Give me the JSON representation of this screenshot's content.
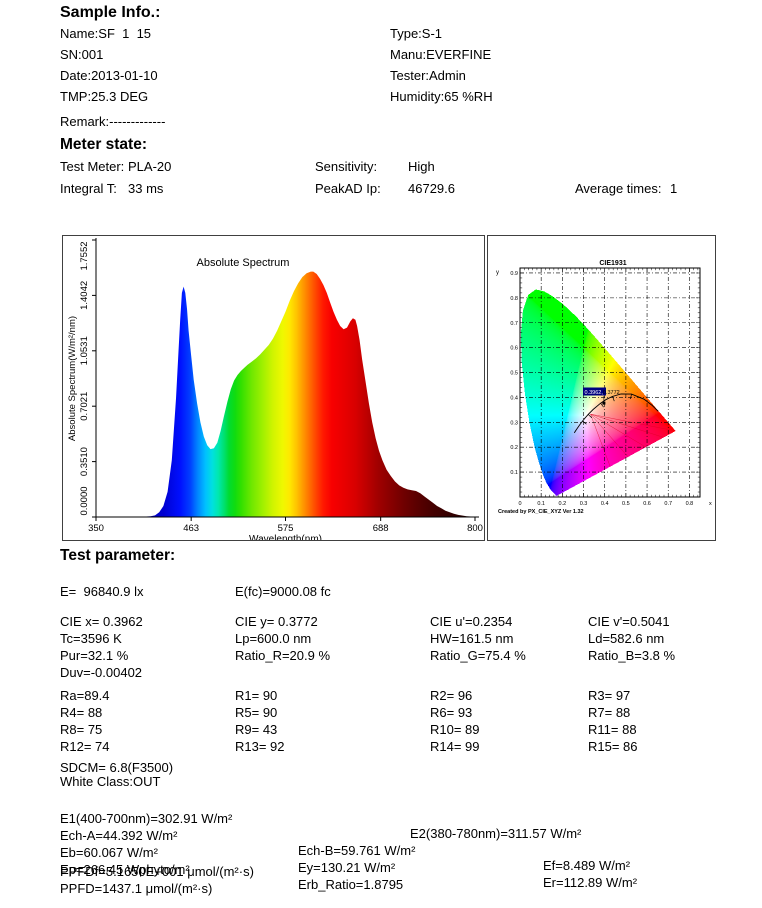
{
  "sample_info": {
    "heading": "Sample Info.:",
    "left": [
      "Name:SF  1  15",
      "SN:001",
      "Date:2013-01-10",
      "TMP:25.3 DEG",
      "Remark:-------------"
    ],
    "right": [
      "Type:S-1",
      "Manu:EVERFINE",
      "Tester:Admin",
      "Humidity:65 %RH"
    ]
  },
  "meter_state": {
    "heading": "Meter state:",
    "left": [
      [
        "Test Meter:",
        "PLA-20"
      ],
      [
        "Integral T:",
        "33 ms"
      ]
    ],
    "mid": [
      [
        "Sensitivity:",
        "High"
      ],
      [
        "PeakAD Ip:",
        "46729.6"
      ]
    ],
    "right": [
      [
        "Average times:",
        "1"
      ]
    ]
  },
  "test_parameter": {
    "heading": "Test parameter:",
    "e_row": [
      [
        "E=  96840.9 lx",
        "E(fc)=9000.08 fc"
      ]
    ],
    "cie_rows": [
      [
        "CIE x= 0.3962",
        "CIE y= 0.3772",
        "CIE u'=0.2354",
        "CIE v'=0.5041"
      ],
      [
        "Tc=3596 K",
        "Lp=600.0 nm",
        "HW=161.5 nm",
        "Ld=582.6 nm"
      ],
      [
        "Pur=32.1 %",
        "Ratio_R=20.9 %",
        "Ratio_G=75.4 %",
        "Ratio_B=3.8 %"
      ],
      [
        "Duv=-0.00402",
        "",
        "",
        ""
      ]
    ],
    "cri_rows": [
      [
        "Ra=89.4",
        "R1= 90",
        "R2= 96",
        "R3= 97"
      ],
      [
        "R4= 88",
        "R5= 90",
        "R6= 93",
        "R7= 88"
      ],
      [
        "R8= 75",
        "R9= 43",
        "R10= 89",
        "R11= 88"
      ],
      [
        "R12= 74",
        "R13= 92",
        "R14= 99",
        "R15= 86"
      ]
    ],
    "sdcm": "SDCM= 6.8(F3500)",
    "white_class": "White Class:OUT",
    "energy": {
      "e1": "E1(400-700nm)=302.91 W/m²",
      "e2": "E2(380-780nm)=311.57 W/m²",
      "ech_a": "Ech-A=44.392 W/m²",
      "ech_b": "Ech-B=59.761 W/m²",
      "ef": "Ef=8.489 W/m²",
      "eb": "Eb=60.067 W/m²",
      "ey": "Ey=130.21 W/m²",
      "er": "Er=112.89 W/m²",
      "ep": "Ep=266.45 Wphyto/m²",
      "erb": "Erb_Ratio=1.8795",
      "ppfdf": "PPFDf=5.1650E+001 μmol/(m²·s)",
      "ppfd": "PPFD=1437.1 μmol/(m²·s)"
    }
  },
  "chart_data": [
    {
      "type": "area",
      "title": "Absolute Spectrum",
      "xlabel": "Wavelength(nm)",
      "ylabel": "Absolute Spectrum(W/m²/nm)",
      "xlim": [
        350,
        800
      ],
      "ylim": [
        0,
        1.7552
      ],
      "xtick_labels": [
        "350",
        "463",
        "575",
        "688",
        "800"
      ],
      "ytick_labels": [
        "0.0000",
        "0.3510",
        "0.7021",
        "1.0531",
        "1.4042",
        "1.7552"
      ],
      "points": [
        [
          350,
          0
        ],
        [
          400,
          0
        ],
        [
          415,
          0.005
        ],
        [
          420,
          0.01
        ],
        [
          425,
          0.03
        ],
        [
          430,
          0.07
        ],
        [
          435,
          0.16
        ],
        [
          440,
          0.36
        ],
        [
          445,
          0.75
        ],
        [
          448,
          1.05
        ],
        [
          450,
          1.25
        ],
        [
          452,
          1.42
        ],
        [
          454,
          1.46
        ],
        [
          456,
          1.42
        ],
        [
          458,
          1.32
        ],
        [
          460,
          1.18
        ],
        [
          463,
          1.02
        ],
        [
          466,
          0.87
        ],
        [
          470,
          0.72
        ],
        [
          474,
          0.6
        ],
        [
          478,
          0.51
        ],
        [
          482,
          0.455
        ],
        [
          486,
          0.43
        ],
        [
          490,
          0.435
        ],
        [
          494,
          0.47
        ],
        [
          498,
          0.545
        ],
        [
          502,
          0.64
        ],
        [
          506,
          0.73
        ],
        [
          510,
          0.81
        ],
        [
          514,
          0.865
        ],
        [
          518,
          0.9
        ],
        [
          522,
          0.925
        ],
        [
          526,
          0.945
        ],
        [
          530,
          0.965
        ],
        [
          535,
          0.985
        ],
        [
          540,
          1.005
        ],
        [
          545,
          1.03
        ],
        [
          550,
          1.06
        ],
        [
          555,
          1.09
        ],
        [
          560,
          1.13
        ],
        [
          565,
          1.18
        ],
        [
          570,
          1.24
        ],
        [
          575,
          1.3
        ],
        [
          580,
          1.37
        ],
        [
          585,
          1.43
        ],
        [
          590,
          1.48
        ],
        [
          595,
          1.52
        ],
        [
          600,
          1.545
        ],
        [
          605,
          1.555
        ],
        [
          608,
          1.555
        ],
        [
          612,
          1.54
        ],
        [
          616,
          1.51
        ],
        [
          620,
          1.47
        ],
        [
          624,
          1.42
        ],
        [
          628,
          1.36
        ],
        [
          632,
          1.3
        ],
        [
          636,
          1.25
        ],
        [
          640,
          1.21
        ],
        [
          644,
          1.19
        ],
        [
          648,
          1.2
        ],
        [
          652,
          1.24
        ],
        [
          655,
          1.26
        ],
        [
          658,
          1.25
        ],
        [
          660,
          1.21
        ],
        [
          663,
          1.12
        ],
        [
          666,
          1.0
        ],
        [
          670,
          0.86
        ],
        [
          674,
          0.72
        ],
        [
          678,
          0.6
        ],
        [
          682,
          0.5
        ],
        [
          686,
          0.42
        ],
        [
          690,
          0.36
        ],
        [
          695,
          0.3
        ],
        [
          700,
          0.26
        ],
        [
          705,
          0.225
        ],
        [
          710,
          0.2
        ],
        [
          715,
          0.185
        ],
        [
          720,
          0.175
        ],
        [
          725,
          0.17
        ],
        [
          730,
          0.165
        ],
        [
          735,
          0.15
        ],
        [
          740,
          0.13
        ],
        [
          745,
          0.11
        ],
        [
          750,
          0.09
        ],
        [
          755,
          0.07
        ],
        [
          760,
          0.055
        ],
        [
          765,
          0.04
        ],
        [
          770,
          0.03
        ],
        [
          775,
          0.02
        ],
        [
          780,
          0.013
        ],
        [
          790,
          0.005
        ],
        [
          800,
          0.002
        ]
      ],
      "gradient": [
        [
          350,
          "#0000a0"
        ],
        [
          430,
          "#0000d0"
        ],
        [
          450,
          "#0010ff"
        ],
        [
          462,
          "#0040ff"
        ],
        [
          470,
          "#0080ff"
        ],
        [
          480,
          "#00c0ff"
        ],
        [
          488,
          "#00e0e0"
        ],
        [
          495,
          "#00e8b0"
        ],
        [
          502,
          "#00e070"
        ],
        [
          508,
          "#00dc30"
        ],
        [
          515,
          "#10dc10"
        ],
        [
          522,
          "#30e000"
        ],
        [
          535,
          "#70e800"
        ],
        [
          548,
          "#a0f000"
        ],
        [
          560,
          "#d0f400"
        ],
        [
          572,
          "#f0f800"
        ],
        [
          580,
          "#ffe800"
        ],
        [
          588,
          "#ffc400"
        ],
        [
          596,
          "#ff9800"
        ],
        [
          604,
          "#ff6c00"
        ],
        [
          612,
          "#ff4000"
        ],
        [
          620,
          "#ff1800"
        ],
        [
          630,
          "#f80000"
        ],
        [
          645,
          "#e80000"
        ],
        [
          658,
          "#d80000"
        ],
        [
          670,
          "#c00000"
        ],
        [
          685,
          "#a00000"
        ],
        [
          700,
          "#880000"
        ],
        [
          715,
          "#700000"
        ],
        [
          730,
          "#5c0000"
        ],
        [
          750,
          "#440000"
        ],
        [
          770,
          "#340000"
        ],
        [
          800,
          "#240000"
        ]
      ]
    },
    {
      "type": "chromaticity",
      "title": "CIE1931",
      "xlabel": "x",
      "ylabel": "y",
      "xlim": [
        0,
        0.85
      ],
      "ylim": [
        0,
        0.92
      ],
      "xtick_labels": [
        "0",
        "0.1",
        "0.2",
        "0.3",
        "0.4",
        "0.5",
        "0.6",
        "0.7",
        "0.8"
      ],
      "ytick_labels": [
        "0.1",
        "0.2",
        "0.3",
        "0.4",
        "0.5",
        "0.6",
        "0.7",
        "0.8",
        "0.9"
      ],
      "point": {
        "x": 0.3962,
        "y": 0.3772,
        "label": "0.3962,0.3772"
      },
      "credit": "Created by PX_CIE_XYZ Ver 1.32",
      "locus": [
        [
          0.1741,
          0.005
        ],
        [
          0.1738,
          0.0049
        ],
        [
          0.1733,
          0.0048
        ],
        [
          0.1726,
          0.0048
        ],
        [
          0.1714,
          0.0051
        ],
        [
          0.1689,
          0.0069
        ],
        [
          0.1644,
          0.0109
        ],
        [
          0.1566,
          0.0177
        ],
        [
          0.144,
          0.0297
        ],
        [
          0.1241,
          0.0578
        ],
        [
          0.1096,
          0.0868
        ],
        [
          0.0913,
          0.1327
        ],
        [
          0.0687,
          0.2007
        ],
        [
          0.0454,
          0.295
        ],
        [
          0.0235,
          0.4127
        ],
        [
          0.0082,
          0.5384
        ],
        [
          0.0039,
          0.6548
        ],
        [
          0.0139,
          0.7502
        ],
        [
          0.0389,
          0.812
        ],
        [
          0.0743,
          0.8338
        ],
        [
          0.1142,
          0.8262
        ],
        [
          0.1547,
          0.8059
        ],
        [
          0.1929,
          0.7816
        ],
        [
          0.2296,
          0.7543
        ],
        [
          0.2658,
          0.7243
        ],
        [
          0.3016,
          0.6923
        ],
        [
          0.3373,
          0.6589
        ],
        [
          0.3731,
          0.6245
        ],
        [
          0.4087,
          0.5896
        ],
        [
          0.4441,
          0.5547
        ],
        [
          0.4788,
          0.5202
        ],
        [
          0.5125,
          0.4866
        ],
        [
          0.5448,
          0.4544
        ],
        [
          0.5752,
          0.4242
        ],
        [
          0.6029,
          0.3965
        ],
        [
          0.627,
          0.3725
        ],
        [
          0.6482,
          0.3514
        ],
        [
          0.6658,
          0.334
        ],
        [
          0.6915,
          0.3083
        ],
        [
          0.7079,
          0.292
        ],
        [
          0.719,
          0.2809
        ],
        [
          0.726,
          0.274
        ],
        [
          0.73,
          0.27
        ],
        [
          0.7334,
          0.2666
        ],
        [
          0.7347,
          0.2653
        ]
      ],
      "planckian": [
        [
          0.2565,
          0.2577
        ],
        [
          0.2637,
          0.2673
        ],
        [
          0.2807,
          0.2884
        ],
        [
          0.2952,
          0.3048
        ],
        [
          0.3064,
          0.3166
        ],
        [
          0.3221,
          0.3318
        ],
        [
          0.3451,
          0.3516
        ],
        [
          0.3805,
          0.3768
        ],
        [
          0.4053,
          0.3907
        ],
        [
          0.4369,
          0.4041
        ],
        [
          0.477,
          0.4137
        ],
        [
          0.5267,
          0.4133
        ],
        [
          0.5857,
          0.3931
        ],
        [
          0.6249,
          0.3676
        ],
        [
          0.6528,
          0.3444
        ]
      ],
      "purity_lines": [
        [
          0.333,
          0.333,
          0.426,
          0.122
        ],
        [
          0.333,
          0.333,
          0.5105,
          0.1612
        ],
        [
          0.333,
          0.333,
          0.5946,
          0.2002
        ],
        [
          0.333,
          0.333,
          0.6786,
          0.2393
        ],
        [
          0.333,
          0.333,
          0.7347,
          0.2653
        ]
      ]
    }
  ]
}
